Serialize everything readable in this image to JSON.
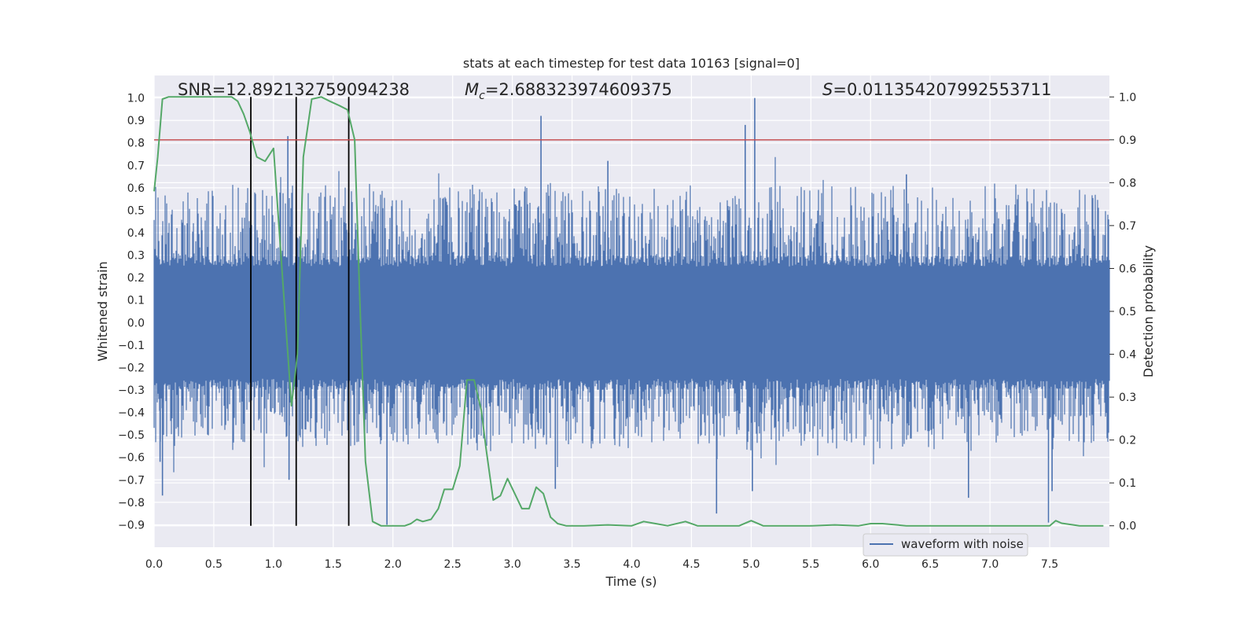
{
  "chart_data": {
    "type": "line",
    "title": "stats at each timestep for test data 10163 [signal=0]",
    "xlabel": "Time (s)",
    "ylabel": "Whitened strain",
    "y2label": "Detection probability",
    "xlim": [
      0.0,
      8.0
    ],
    "ylim": [
      -1.0,
      1.1
    ],
    "y2lim": [
      -0.05,
      1.05
    ],
    "x_ticks": [
      0.0,
      0.5,
      1.0,
      1.5,
      2.0,
      2.5,
      3.0,
      3.5,
      4.0,
      4.5,
      5.0,
      5.5,
      6.0,
      6.5,
      7.0,
      7.5
    ],
    "x_tick_labels": [
      "0.0",
      "0.5",
      "1.0",
      "1.5",
      "2.0",
      "2.5",
      "3.0",
      "3.5",
      "4.0",
      "4.5",
      "5.0",
      "5.5",
      "6.0",
      "6.5",
      "7.0",
      "7.5"
    ],
    "y_ticks": [
      -0.9,
      -0.8,
      -0.7,
      -0.6,
      -0.5,
      -0.4,
      -0.3,
      -0.2,
      -0.1,
      0.0,
      0.1,
      0.2,
      0.3,
      0.4,
      0.5,
      0.6,
      0.7,
      0.8,
      0.9,
      1.0
    ],
    "y_tick_labels": [
      "−0.9",
      "−0.8",
      "−0.7",
      "−0.6",
      "−0.5",
      "−0.4",
      "−0.3",
      "−0.2",
      "−0.1",
      "0.0",
      "0.1",
      "0.2",
      "0.3",
      "0.4",
      "0.5",
      "0.6",
      "0.7",
      "0.8",
      "0.9",
      "1.0"
    ],
    "y2_ticks": [
      0.0,
      0.1,
      0.2,
      0.3,
      0.4,
      0.5,
      0.6,
      0.7,
      0.8,
      0.9,
      1.0
    ],
    "y2_tick_labels": [
      "0.0",
      "0.1",
      "0.2",
      "0.3",
      "0.4",
      "0.5",
      "0.6",
      "0.7",
      "0.8",
      "0.9",
      "1.0"
    ],
    "grid": true,
    "legend": {
      "placement": "lower-right",
      "entries": [
        "waveform with noise"
      ]
    },
    "annotations": {
      "snr": "SNR=12.892132759094238",
      "mc": "=2.688323974609375",
      "s": "=0.011354207992553711"
    },
    "threshold_line": {
      "axis": "y2",
      "value": 0.9,
      "color": "#c44e52"
    },
    "vertical_lines": [
      0.81,
      1.19,
      1.63
    ],
    "waveform": {
      "name": "waveform with noise",
      "color": "#4c72b0",
      "envelope_hint": "dense noise, band ±0.3 with spikes up to ±0.7",
      "spikes": [
        {
          "x": 0.05,
          "y": -0.62
        },
        {
          "x": 0.07,
          "y": -0.77
        },
        {
          "x": 0.75,
          "y": -0.45
        },
        {
          "x": 1.12,
          "y": 0.83
        },
        {
          "x": 1.13,
          "y": -0.7
        },
        {
          "x": 1.95,
          "y": -0.9
        },
        {
          "x": 3.24,
          "y": 0.92
        },
        {
          "x": 3.36,
          "y": -0.74
        },
        {
          "x": 4.71,
          "y": -0.85
        },
        {
          "x": 4.95,
          "y": 0.88
        },
        {
          "x": 5.03,
          "y": 1.0
        },
        {
          "x": 5.01,
          "y": -0.75
        },
        {
          "x": 6.82,
          "y": -0.78
        },
        {
          "x": 7.49,
          "y": -0.89
        },
        {
          "x": 7.52,
          "y": -0.75
        },
        {
          "x": 6.3,
          "y": 0.66
        },
        {
          "x": 3.8,
          "y": 0.72
        }
      ]
    },
    "probability": {
      "color": "#55a868",
      "x": [
        0.0,
        0.03,
        0.07,
        0.12,
        0.2,
        0.3,
        0.4,
        0.5,
        0.6,
        0.65,
        0.7,
        0.75,
        0.8,
        0.86,
        0.93,
        1.0,
        1.05,
        1.1,
        1.15,
        1.2,
        1.25,
        1.32,
        1.4,
        1.47,
        1.55,
        1.62,
        1.68,
        1.72,
        1.77,
        1.83,
        1.9,
        2.0,
        2.1,
        2.15,
        2.2,
        2.25,
        2.32,
        2.38,
        2.43,
        2.5,
        2.56,
        2.62,
        2.68,
        2.74,
        2.78,
        2.84,
        2.9,
        2.96,
        3.02,
        3.08,
        3.14,
        3.2,
        3.26,
        3.32,
        3.38,
        3.45,
        3.6,
        3.8,
        4.0,
        4.1,
        4.2,
        4.3,
        4.45,
        4.55,
        4.7,
        4.9,
        5.0,
        5.1,
        5.3,
        5.5,
        5.7,
        5.9,
        6.0,
        6.1,
        6.3,
        6.5,
        6.8,
        7.0,
        7.2,
        7.4,
        7.5,
        7.55,
        7.6,
        7.75,
        7.95
      ],
      "y": [
        0.78,
        0.86,
        0.995,
        1.0,
        1.0,
        1.0,
        1.0,
        1.0,
        1.0,
        1.0,
        0.99,
        0.96,
        0.92,
        0.86,
        0.85,
        0.88,
        0.68,
        0.48,
        0.28,
        0.4,
        0.86,
        0.995,
        1.0,
        0.99,
        0.98,
        0.97,
        0.9,
        0.55,
        0.15,
        0.01,
        0.0,
        0.0,
        0.0,
        0.005,
        0.015,
        0.01,
        0.015,
        0.04,
        0.085,
        0.085,
        0.14,
        0.34,
        0.34,
        0.27,
        0.18,
        0.06,
        0.07,
        0.11,
        0.075,
        0.04,
        0.04,
        0.09,
        0.075,
        0.02,
        0.005,
        0.0,
        0.0,
        0.002,
        0.0,
        0.01,
        0.005,
        0.0,
        0.01,
        0.0,
        0.0,
        0.0,
        0.012,
        0.0,
        0.0,
        0.0,
        0.002,
        0.0,
        0.005,
        0.005,
        0.0,
        0.0,
        0.0,
        0.0,
        0.0,
        0.0,
        0.0,
        0.012,
        0.006,
        0.0,
        0.0
      ]
    }
  }
}
